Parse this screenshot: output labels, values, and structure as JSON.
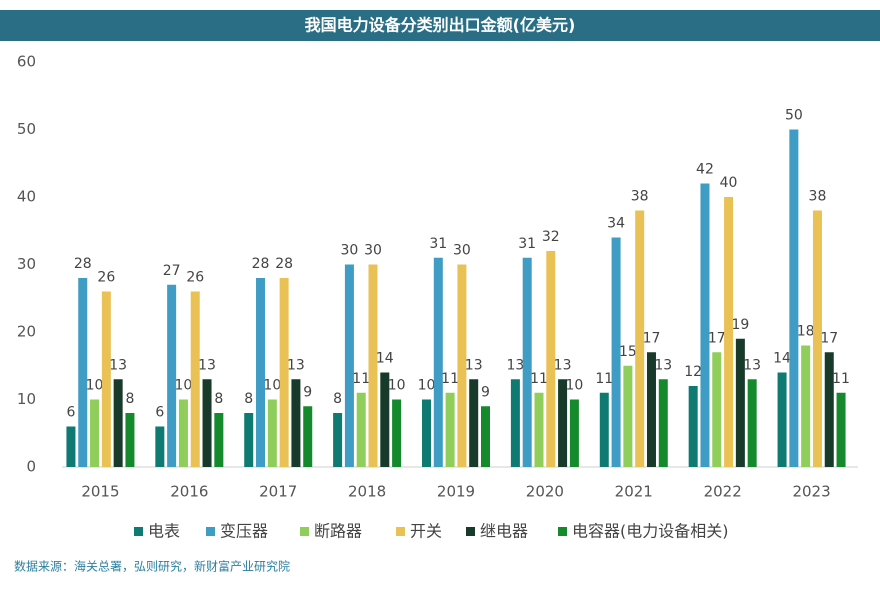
{
  "chart_data": {
    "type": "bar",
    "title": "我国电力设备分类别出口金额(亿美元)",
    "categories": [
      "2015",
      "2016",
      "2017",
      "2018",
      "2019",
      "2020",
      "2021",
      "2022",
      "2023"
    ],
    "series": [
      {
        "name": "电表",
        "color": "#0e7a72",
        "values": [
          6,
          6,
          8,
          8,
          10,
          13,
          11,
          12,
          14
        ]
      },
      {
        "name": "变压器",
        "color": "#3f9cc4",
        "values": [
          28,
          27,
          28,
          30,
          31,
          31,
          34,
          42,
          50
        ]
      },
      {
        "name": "断路器",
        "color": "#8fce5a",
        "values": [
          10,
          10,
          10,
          11,
          11,
          11,
          15,
          17,
          18
        ]
      },
      {
        "name": "开关",
        "color": "#eac155",
        "values": [
          26,
          26,
          28,
          30,
          30,
          32,
          38,
          40,
          38
        ]
      },
      {
        "name": "继电器",
        "color": "#173a2a",
        "values": [
          13,
          13,
          13,
          14,
          13,
          13,
          17,
          19,
          17
        ]
      },
      {
        "name": "电容器(电力设备相关)",
        "color": "#158a2c",
        "values": [
          8,
          8,
          9,
          10,
          9,
          10,
          13,
          13,
          11
        ]
      }
    ],
    "ylim": [
      0,
      60
    ],
    "yticks": [
      0,
      10,
      20,
      30,
      40,
      50,
      60
    ],
    "source": "数据来源：海关总署，弘则研究，新财富产业研究院"
  }
}
